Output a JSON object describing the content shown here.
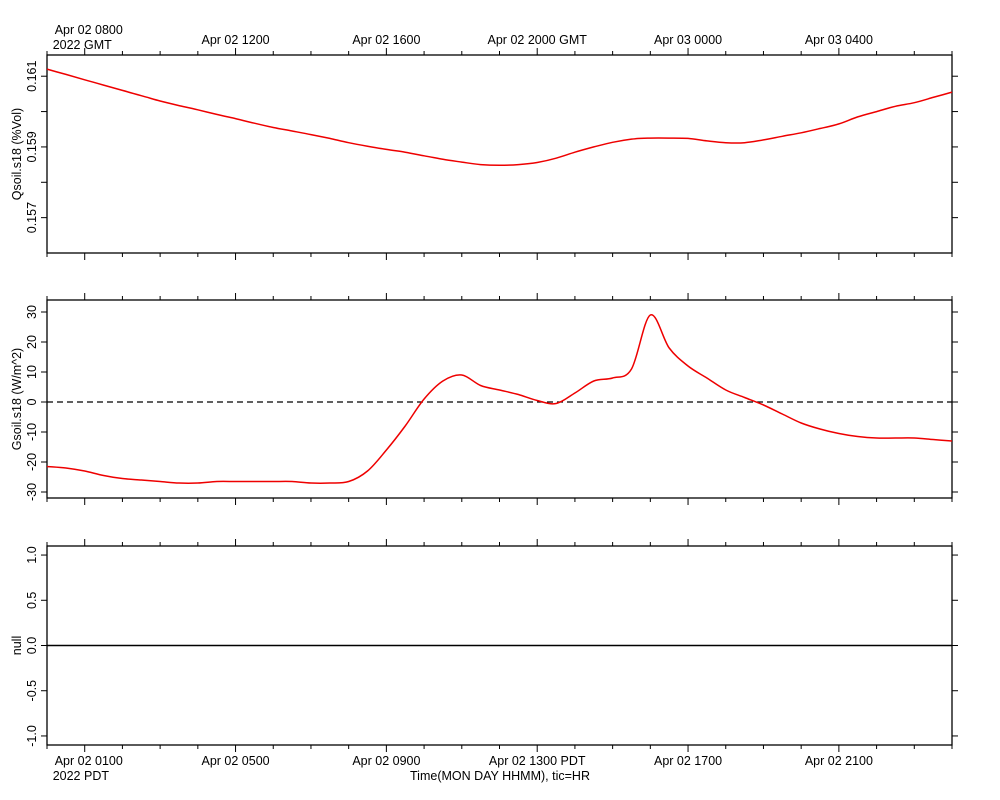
{
  "chart_data": {
    "type": "line",
    "time_axis": {
      "top_gmt_labels": [
        {
          "hour": 0,
          "label": "Apr 02 0800",
          "sublabel": "2022 GMT"
        },
        {
          "hour": 4,
          "label": "Apr 02 1200"
        },
        {
          "hour": 8,
          "label": "Apr 02 1600"
        },
        {
          "hour": 12,
          "label": "Apr 02 2000 GMT"
        },
        {
          "hour": 16,
          "label": "Apr 03 0000"
        },
        {
          "hour": 20,
          "label": "Apr 03 0400"
        }
      ],
      "bottom_pdt_labels": [
        {
          "hour": 0,
          "label": "Apr 02 0100",
          "sublabel": "2022 PDT"
        },
        {
          "hour": 4,
          "label": "Apr 02 0500"
        },
        {
          "hour": 8,
          "label": "Apr 02 0900"
        },
        {
          "hour": 12,
          "label": "Apr 02 1300 PDT"
        },
        {
          "hour": 16,
          "label": "Apr 02 1700"
        },
        {
          "hour": 20,
          "label": "Apr 02 2100"
        }
      ],
      "xlabel": "Time(MON DAY HHMM), tic=HR",
      "xlim_hours_from_apr02_0100_pdt": [
        -1,
        23
      ],
      "tic_interval_hours": 1
    },
    "panels": [
      {
        "name": "Qsoil.s18",
        "ylabel": "Qsoil.s18 (%Vol)",
        "ylim": [
          0.156,
          0.1616
        ],
        "ticks": [
          0.157,
          0.158,
          0.159,
          0.16,
          0.161
        ],
        "tick_labels": [
          {
            "value": 0.157,
            "label": "0.157"
          },
          {
            "value": 0.159,
            "label": "0.159"
          },
          {
            "value": 0.161,
            "label": "0.161"
          }
        ],
        "line_color": "#ee0000",
        "series_hours": [
          -1,
          -0.5,
          0,
          0.5,
          1,
          1.5,
          2,
          2.5,
          3,
          3.5,
          4,
          4.5,
          5,
          5.5,
          6,
          6.5,
          7,
          7.5,
          8,
          8.5,
          9,
          9.5,
          10,
          10.5,
          11,
          11.5,
          12,
          12.5,
          13,
          13.5,
          14,
          14.5,
          15,
          15.5,
          16,
          16.5,
          17,
          17.5,
          18,
          18.5,
          19,
          19.5,
          20,
          20.5,
          21,
          21.5,
          22,
          22.5,
          23
        ],
        "series_values": [
          0.1612,
          0.16105,
          0.1609,
          0.16075,
          0.1606,
          0.16045,
          0.1603,
          0.16017,
          0.16005,
          0.15992,
          0.1598,
          0.15967,
          0.15955,
          0.15945,
          0.15935,
          0.15924,
          0.15912,
          0.15902,
          0.15893,
          0.15885,
          0.15875,
          0.15865,
          0.15857,
          0.1585,
          0.15848,
          0.1585,
          0.15856,
          0.15868,
          0.15885,
          0.159,
          0.15913,
          0.15922,
          0.15925,
          0.15925,
          0.15924,
          0.15917,
          0.15912,
          0.15912,
          0.1592,
          0.1593,
          0.1594,
          0.15952,
          0.15965,
          0.15985,
          0.16,
          0.16015,
          0.16025,
          0.1604,
          0.16055
        ]
      },
      {
        "name": "Gsoil.s18",
        "ylabel": "Gsoil.s18 (W/m^2)",
        "ylim": [
          -32,
          34
        ],
        "ticks": [
          -30,
          -20,
          -10,
          0,
          10,
          20,
          30
        ],
        "tick_labels": [
          {
            "value": -30,
            "label": "-30"
          },
          {
            "value": -20,
            "label": "-20"
          },
          {
            "value": -10,
            "label": "-10"
          },
          {
            "value": 0,
            "label": "0"
          },
          {
            "value": 10,
            "label": "10"
          },
          {
            "value": 20,
            "label": "20"
          },
          {
            "value": 30,
            "label": "30"
          }
        ],
        "zero_line": "dashed",
        "line_color": "#ee0000",
        "series_hours": [
          -1,
          -0.5,
          0,
          0.5,
          1,
          1.5,
          2,
          2.5,
          3,
          3.5,
          4,
          4.5,
          5,
          5.5,
          6,
          6.5,
          7,
          7.5,
          8,
          8.5,
          9,
          9.5,
          10,
          10.5,
          11,
          11.5,
          12,
          12.5,
          13,
          13.5,
          14,
          14.5,
          15,
          15.5,
          16,
          16.5,
          17,
          17.5,
          18,
          18.5,
          19,
          19.5,
          20,
          20.5,
          21,
          21.5,
          22,
          22.5,
          23
        ],
        "series_values": [
          -21.5,
          -22,
          -23,
          -24.5,
          -25.5,
          -26,
          -26.5,
          -27,
          -27,
          -26.5,
          -26.5,
          -26.5,
          -26.5,
          -26.5,
          -27,
          -27,
          -26.5,
          -23,
          -16,
          -8,
          1,
          7,
          9,
          5.5,
          4,
          2.5,
          0.5,
          -0.5,
          3,
          7,
          8,
          11,
          29,
          18,
          12,
          8,
          4,
          1.5,
          -1,
          -4,
          -7,
          -9,
          -10.5,
          -11.5,
          -12,
          -12,
          -12,
          -12.5,
          -13
        ]
      },
      {
        "name": "null",
        "ylabel": "null",
        "ylim": [
          -1.1,
          1.1
        ],
        "ticks": [
          -1.0,
          -0.5,
          0.0,
          0.5,
          1.0
        ],
        "tick_labels": [
          {
            "value": -1.0,
            "label": "-1.0"
          },
          {
            "value": -0.5,
            "label": "-0.5"
          },
          {
            "value": 0.0,
            "label": "0.0"
          },
          {
            "value": 0.5,
            "label": "0.5"
          },
          {
            "value": 1.0,
            "label": "1.0"
          }
        ],
        "line_color": "#000000",
        "series_hours": [
          -1,
          23
        ],
        "series_values": [
          0,
          0
        ]
      }
    ]
  }
}
